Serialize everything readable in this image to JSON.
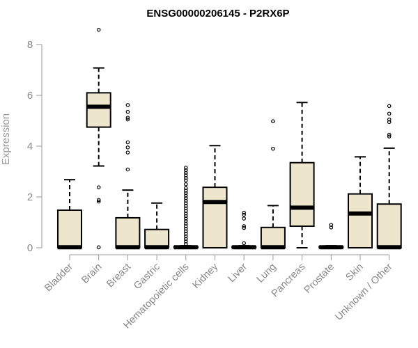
{
  "chart_data": {
    "type": "box",
    "title": "ENSG00000206145 - P2RX6P",
    "ylabel": "Expression",
    "xlabel": "",
    "ylim": [
      0,
      8.6
    ],
    "yticks": [
      0,
      2,
      4,
      6,
      8
    ],
    "grid": false,
    "box_color": "#ede6cc",
    "categories": [
      "Bladder",
      "Brain",
      "Breast",
      "Gastric",
      "Hematopoietic cells",
      "Kidney",
      "Liver",
      "Lung",
      "Pancreas",
      "Prostate",
      "Skin",
      "Unknown / Other"
    ],
    "boxes": [
      {
        "q1": 0,
        "median": 0.02,
        "q3": 1.48,
        "whisker_low": 0,
        "whisker_high": 2.68,
        "outliers": []
      },
      {
        "q1": 4.75,
        "median": 5.55,
        "q3": 6.1,
        "whisker_low": 3.22,
        "whisker_high": 7.08,
        "outliers": [
          8.58,
          2.38,
          1.88,
          1.82,
          0.02
        ]
      },
      {
        "q1": 0,
        "median": 0.02,
        "q3": 1.18,
        "whisker_low": 0,
        "whisker_high": 2.27,
        "outliers": [
          5.62,
          5.35,
          5.12,
          5.05,
          4.15,
          3.95,
          3.75,
          3.08
        ]
      },
      {
        "q1": 0,
        "median": 0.02,
        "q3": 0.72,
        "whisker_low": 0,
        "whisker_high": 1.76,
        "outliers": []
      },
      {
        "q1": 0,
        "median": 0.02,
        "q3": 0.05,
        "whisker_low": 0,
        "whisker_high": 0.08,
        "outliers": [
          3.15,
          3.05,
          2.95,
          2.85,
          2.75,
          2.65,
          2.5,
          2.35,
          2.25,
          2.15,
          2.05,
          1.95,
          1.85,
          1.75,
          1.65,
          1.55,
          1.45,
          1.35,
          1.25,
          1.15,
          1.05,
          0.95,
          0.85,
          0.75,
          0.65,
          0.55,
          0.45,
          0.35,
          0.25,
          0.15
        ]
      },
      {
        "q1": 0,
        "median": 1.8,
        "q3": 2.38,
        "whisker_low": 0,
        "whisker_high": 4.02,
        "outliers": []
      },
      {
        "q1": 0,
        "median": 0.02,
        "q3": 0.05,
        "whisker_low": 0,
        "whisker_high": 0.08,
        "outliers": [
          1.38,
          1.3,
          1.15,
          0.85,
          0.78,
          0.18
        ]
      },
      {
        "q1": 0,
        "median": 0.02,
        "q3": 0.8,
        "whisker_low": 0,
        "whisker_high": 1.66,
        "outliers": [
          4.98,
          3.9
        ]
      },
      {
        "q1": 0.85,
        "median": 1.58,
        "q3": 3.35,
        "whisker_low": 0,
        "whisker_high": 5.72,
        "outliers": []
      },
      {
        "q1": 0,
        "median": 0.02,
        "q3": 0.05,
        "whisker_low": 0,
        "whisker_high": 0.08,
        "outliers": [
          0.9,
          0.8
        ]
      },
      {
        "q1": 0,
        "median": 1.35,
        "q3": 2.12,
        "whisker_low": 0,
        "whisker_high": 3.58,
        "outliers": []
      },
      {
        "q1": 0,
        "median": 0.02,
        "q3": 1.72,
        "whisker_low": 0,
        "whisker_high": 3.92,
        "outliers": [
          5.58,
          5.28,
          5.05,
          4.95,
          4.45,
          4.38
        ]
      }
    ]
  }
}
